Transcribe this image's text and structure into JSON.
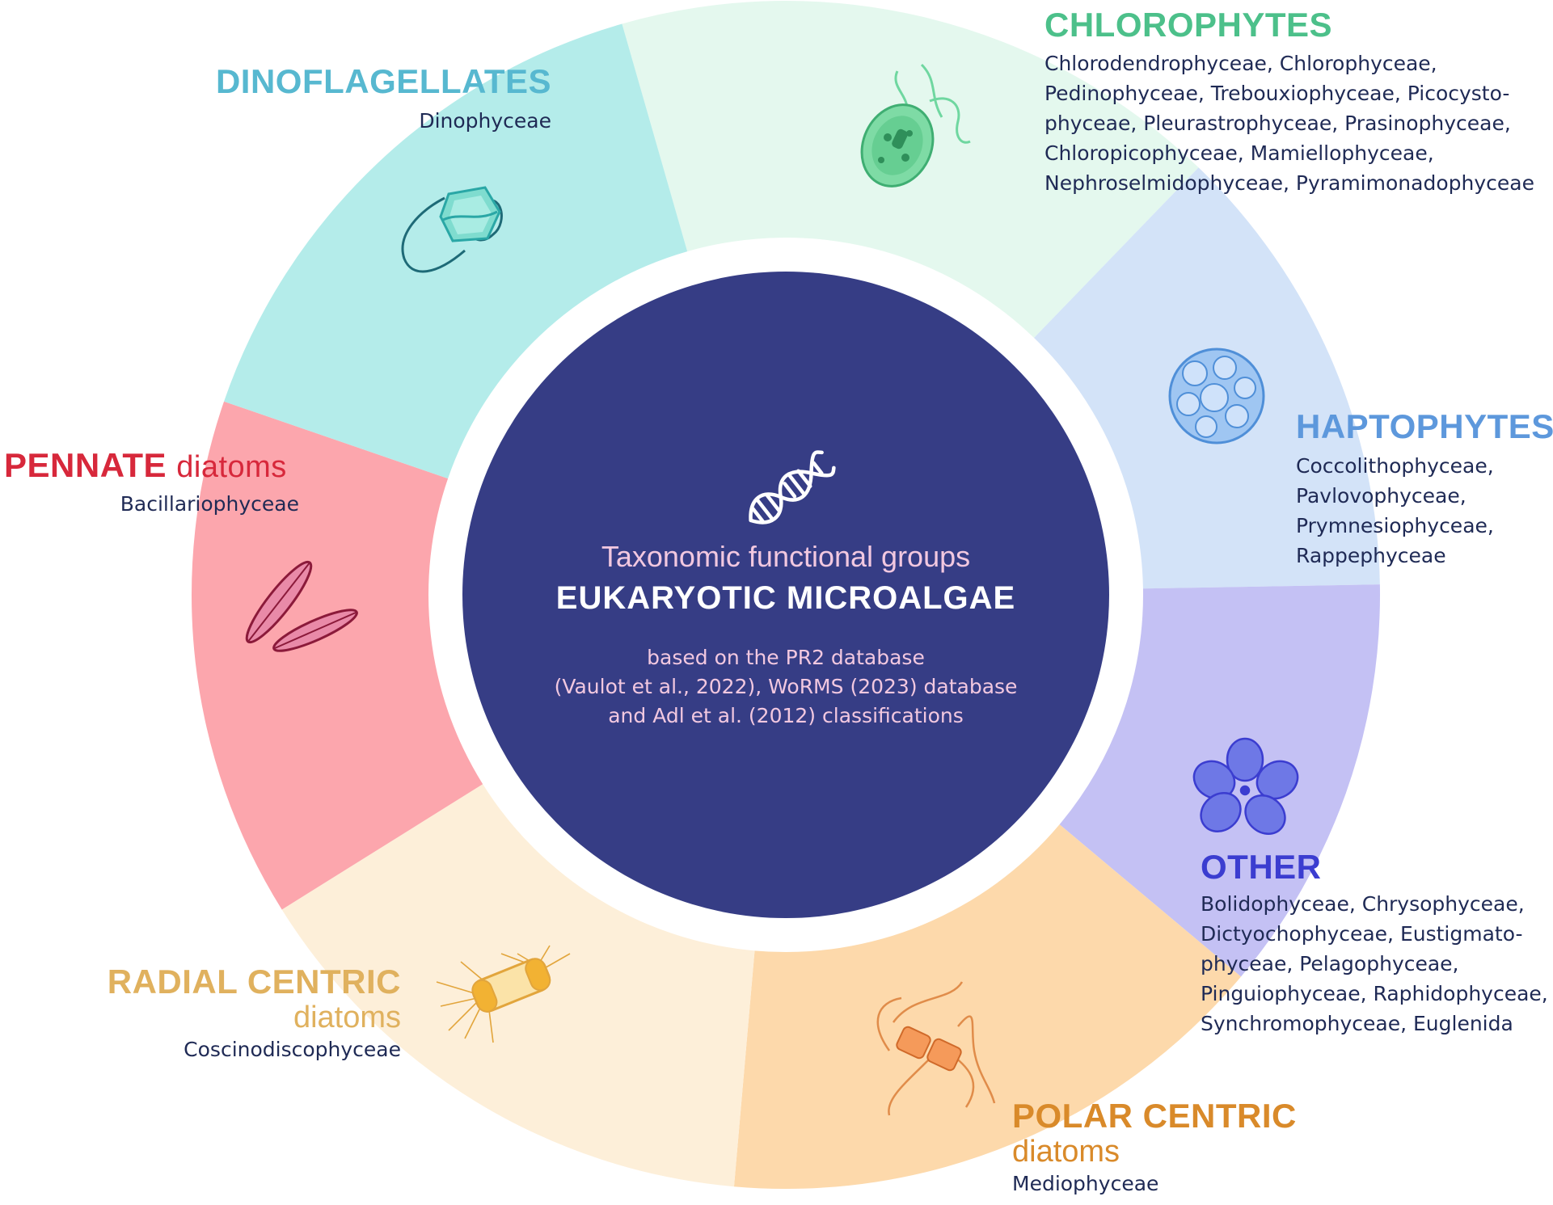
{
  "center": {
    "subtitle": "Taxonomic functional groups",
    "title": "EUKARYOTIC MICROALGAE",
    "source_lines": [
      "based on the PR2 database",
      "(Vaulot et al., 2022), WoRMS (2023) database",
      "and Adl et al. (2012) classifications"
    ],
    "icon": "dna-icon",
    "color": "#363d85"
  },
  "groups": {
    "chlorophytes": {
      "heading": "CHLOROPHYTES",
      "color": "#4cc08a",
      "segment_color": "#e4f8ee",
      "icon": "chlamydomonas-icon",
      "classes": [
        "Chlorodendrophyceae, Chlorophyceae,",
        "Pedinophyceae, Trebouxiophyceae, Picocysto-",
        "phyceae, Pleurastrophyceae, Prasinophyceae,",
        "Chloropicophyceae, Mamiellophyceae,",
        "Nephroselmidophyceae, Pyramimonadophyceae"
      ]
    },
    "haptophytes": {
      "heading": "HAPTOPHYTES",
      "color": "#5d98dc",
      "segment_color": "#d3e3f8",
      "icon": "coccolithophore-icon",
      "classes": [
        "Coccolithophyceae,",
        "Pavlovophyceae,",
        "Prymnesiophyceae,",
        "Rappephyceae"
      ]
    },
    "other": {
      "heading": "OTHER",
      "color": "#3b3dd0",
      "segment_color": "#c4c1f4",
      "icon": "cryptophyte-cluster-icon",
      "classes": [
        "Bolidophyceae, Chrysophyceae,",
        "Dictyochophyceae, Eustigmato-",
        "phyceae, Pelagophyceae,",
        "Pinguiophyceae, Raphidophyceae,",
        "Synchromophyceae, Euglenida"
      ]
    },
    "polar_centric": {
      "heading": "POLAR CENTRIC",
      "suffix": "diatoms",
      "color": "#d98a2a",
      "segment_color": "#fdd9ab",
      "icon": "chaetoceros-icon",
      "classes": [
        "Mediophyceae"
      ]
    },
    "radial_centric": {
      "heading": "RADIAL CENTRIC",
      "suffix": "diatoms",
      "color": "#e0b15e",
      "segment_color": "#fdefd9",
      "icon": "centric-diatom-icon",
      "classes": [
        "Coscinodiscophyceae"
      ]
    },
    "pennate": {
      "heading": "PENNATE",
      "suffix": "diatoms",
      "color": "#d7283b",
      "segment_color": "#fca6ad",
      "icon": "pennate-diatom-icon",
      "classes": [
        "Bacillariophyceae"
      ]
    },
    "dinoflagellates": {
      "heading": "DINOFLAGELLATES",
      "color": "#57b8d0",
      "segment_color": "#b4ecea",
      "icon": "dinoflagellate-icon",
      "classes": [
        "Dinophyceae"
      ]
    }
  }
}
